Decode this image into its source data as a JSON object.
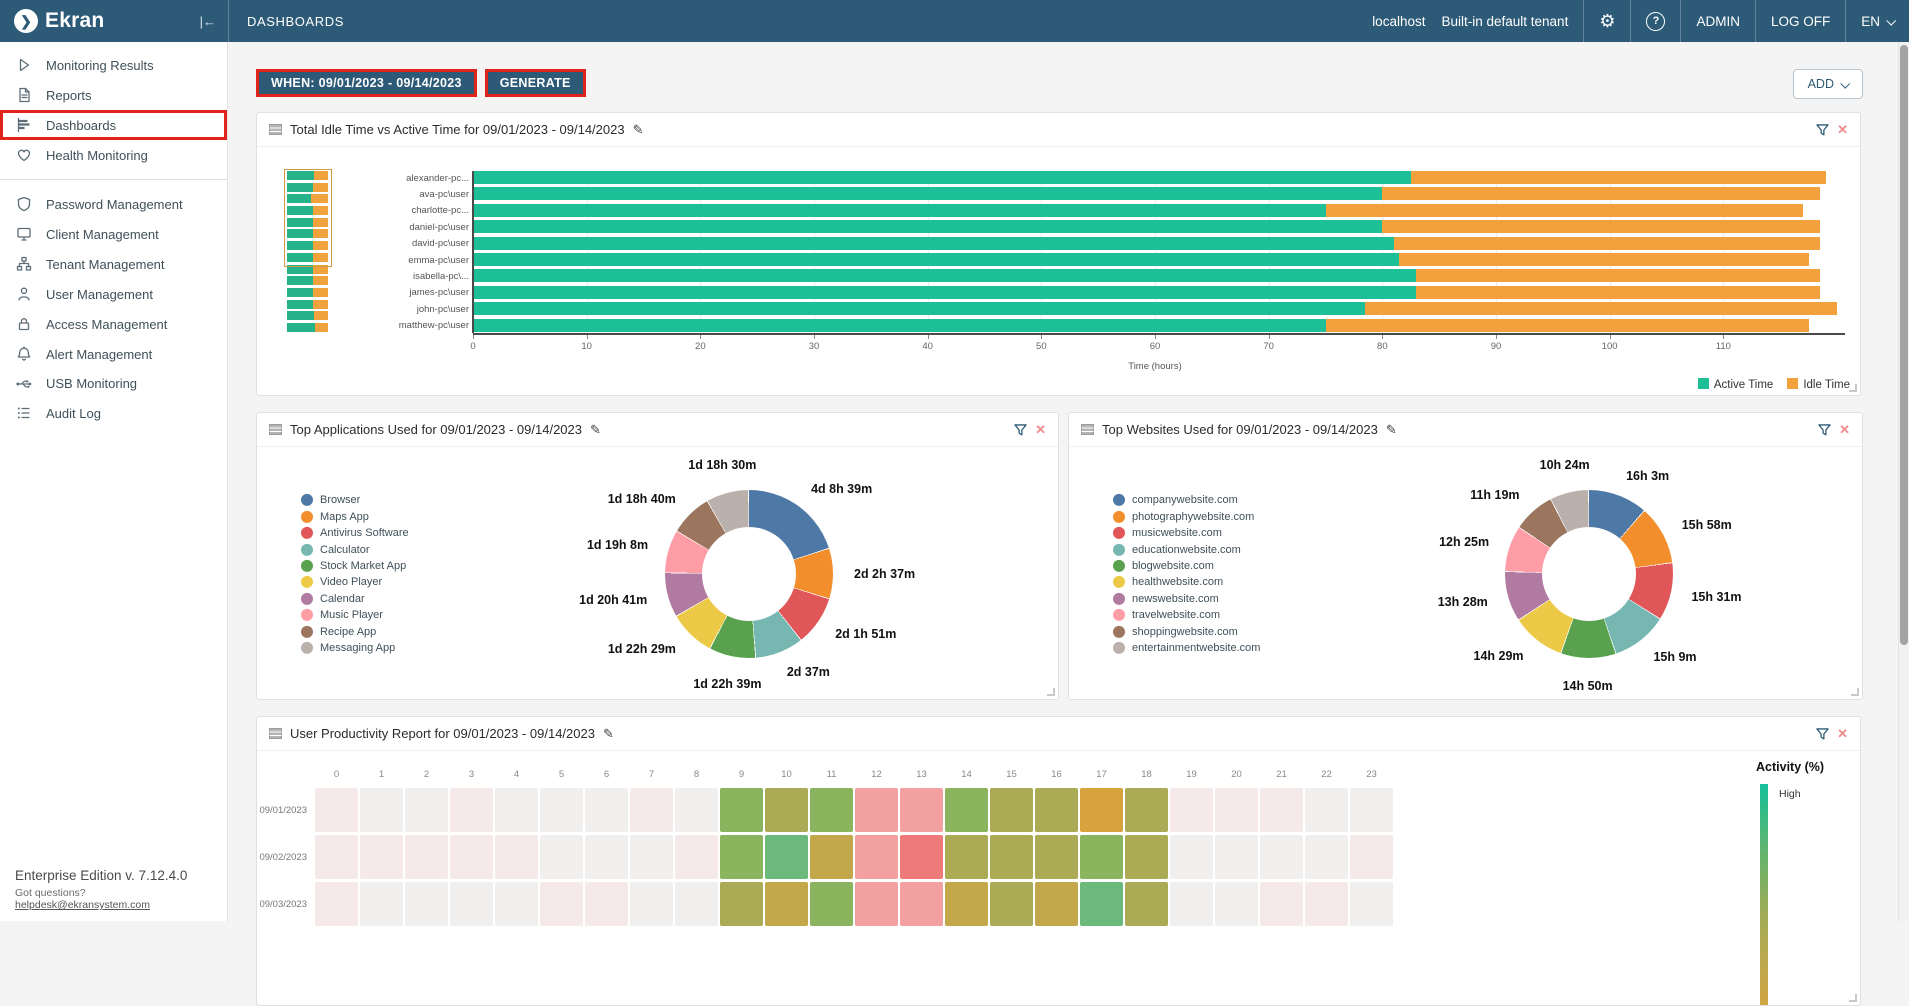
{
  "topbar": {
    "brand": "Ekran",
    "collapse_icon": "|←",
    "page_title": "DASHBOARDS",
    "host": "localhost",
    "tenant": "Built-in default tenant",
    "user": "ADMIN",
    "logoff": "LOG OFF",
    "lang": "EN",
    "help_glyph": "?",
    "gear_glyph": "⚙",
    "brand_glyph": "❯"
  },
  "sidebar": {
    "items": [
      {
        "label": "Monitoring Results",
        "icon": "play-icon"
      },
      {
        "label": "Reports",
        "icon": "report-icon"
      },
      {
        "label": "Dashboards",
        "icon": "dashboard-icon",
        "active": true
      },
      {
        "label": "Health Monitoring",
        "icon": "heart-icon"
      },
      {
        "label": "Password Management",
        "icon": "shield-icon"
      },
      {
        "label": "Client Management",
        "icon": "monitor-icon"
      },
      {
        "label": "Tenant Management",
        "icon": "sitemap-icon"
      },
      {
        "label": "User Management",
        "icon": "user-icon"
      },
      {
        "label": "Access Management",
        "icon": "lock-icon"
      },
      {
        "label": "Alert Management",
        "icon": "bell-icon"
      },
      {
        "label": "USB Monitoring",
        "icon": "usb-icon"
      },
      {
        "label": "Audit Log",
        "icon": "list-icon"
      }
    ],
    "footer": {
      "edition": "Enterprise Edition v. 7.12.4.0",
      "questions_prefix": "Got questions? ",
      "helpdesk": "helpdesk@ekransystem.com"
    }
  },
  "toolbar": {
    "when_label": "WHEN: 09/01/2023 - 09/14/2023",
    "generate_label": "GENERATE",
    "add_label": "ADD"
  },
  "chart_data": [
    {
      "type": "bar",
      "stacked": true,
      "title": "Total Idle Time vs Active Time for 09/01/2023 - 09/14/2023",
      "categories": [
        "alexander-pc...",
        "ava-pc\\user",
        "charlotte-pc...",
        "daniel-pc\\user",
        "david-pc\\user",
        "emma-pc\\user",
        "isabella-pc\\...",
        "james-pc\\user",
        "john-pc\\user",
        "matthew-pc\\user"
      ],
      "series": [
        {
          "name": "Active Time",
          "color": "#1dbf96",
          "values": [
            82.5,
            80,
            75,
            80,
            81,
            81.5,
            83,
            83,
            78.5,
            75
          ]
        },
        {
          "name": "Idle Time",
          "color": "#f2a13c",
          "values": [
            36.5,
            38.5,
            42,
            38.5,
            37.5,
            36,
            35.5,
            35.5,
            41.5,
            42.5
          ]
        }
      ],
      "xlabel": "Time (hours)",
      "xticks": [
        0,
        10,
        20,
        30,
        40,
        50,
        60,
        70,
        80,
        90,
        100,
        110
      ],
      "xmax": 120,
      "navigator": {
        "green_fractions": [
          0.64,
          0.61,
          0.58,
          0.61,
          0.62,
          0.63,
          0.62,
          0.63,
          0.63,
          0.63,
          0.63,
          0.63,
          0.65,
          0.67
        ],
        "selected_rows": 8
      }
    },
    {
      "type": "donut",
      "title": "Top Applications Used for 09/01/2023 - 09/14/2023",
      "items": [
        {
          "label": "Browser",
          "value_label": "4d 8h 39m",
          "hours": 104.65,
          "color": "#4e79a7"
        },
        {
          "label": "Maps App",
          "value_label": "2d 2h 37m",
          "hours": 50.62,
          "color": "#f28e2b"
        },
        {
          "label": "Antivirus Software",
          "value_label": "2d 1h 51m",
          "hours": 49.85,
          "color": "#e15759"
        },
        {
          "label": "Calculator",
          "value_label": "2d 37m",
          "hours": 48.62,
          "color": "#76b7b2"
        },
        {
          "label": "Stock Market App",
          "value_label": "1d 22h 39m",
          "hours": 46.65,
          "color": "#59a14f"
        },
        {
          "label": "Video Player",
          "value_label": "1d 22h 29m",
          "hours": 46.48,
          "color": "#edc948"
        },
        {
          "label": "Calendar",
          "value_label": "1d 20h 41m",
          "hours": 44.68,
          "color": "#b07aa1"
        },
        {
          "label": "Music Player",
          "value_label": "1d 19h 8m",
          "hours": 43.13,
          "color": "#ff9da7"
        },
        {
          "label": "Recipe App",
          "value_label": "1d 18h 40m",
          "hours": 42.67,
          "color": "#9c755f"
        },
        {
          "label": "Messaging App",
          "value_label": "1d 18h 30m",
          "hours": 42.5,
          "color": "#bab0ac"
        }
      ]
    },
    {
      "type": "donut",
      "title": "Top Websites Used for 09/01/2023 - 09/14/2023",
      "items": [
        {
          "label": "companywebsite.com",
          "value_label": "16h 3m",
          "hours": 16.05,
          "color": "#4e79a7"
        },
        {
          "label": "photographywebsite.com",
          "value_label": "15h 58m",
          "hours": 15.97,
          "color": "#f28e2b"
        },
        {
          "label": "musicwebsite.com",
          "value_label": "15h 31m",
          "hours": 15.52,
          "color": "#e15759"
        },
        {
          "label": "educationwebsite.com",
          "value_label": "15h 9m",
          "hours": 15.15,
          "color": "#76b7b2"
        },
        {
          "label": "blogwebsite.com",
          "value_label": "14h 50m",
          "hours": 14.83,
          "color": "#59a14f"
        },
        {
          "label": "healthwebsite.com",
          "value_label": "14h 29m",
          "hours": 14.48,
          "color": "#edc948"
        },
        {
          "label": "newswebsite.com",
          "value_label": "13h 28m",
          "hours": 13.47,
          "color": "#b07aa1"
        },
        {
          "label": "travelwebsite.com",
          "value_label": "12h 25m",
          "hours": 12.42,
          "color": "#ff9da7"
        },
        {
          "label": "shoppingwebsite.com",
          "value_label": "11h 19m",
          "hours": 11.32,
          "color": "#9c755f"
        },
        {
          "label": "entertainmentwebsite.com",
          "value_label": "10h 24m",
          "hours": 10.4,
          "color": "#bab0ac"
        }
      ]
    },
    {
      "type": "heatmap",
      "title": "User Productivity Report for 09/01/2023 - 09/14/2023",
      "hours": [
        0,
        1,
        2,
        3,
        4,
        5,
        6,
        7,
        8,
        9,
        10,
        11,
        12,
        13,
        14,
        15,
        16,
        17,
        18,
        19,
        20,
        21,
        22,
        23
      ],
      "rows": [
        {
          "date": "09/01/2023",
          "cells": "PLLPLLLPLgogppgooOoPPPLL"
        },
        {
          "date": "09/02/2023",
          "cells": "PPPPPLLLPgtmprooogoLLLLP"
        },
        {
          "date": "09/03/2023",
          "cells": "PLLLLPPLLomgppmomtoLLPPL"
        }
      ],
      "palette": {
        "g": "#8ab55e",
        "t": "#6cba7b",
        "o": "#abaa55",
        "m": "#c2a84b",
        "O": "#d8a33c",
        "p": "#f2a0a0",
        "r": "#ee7a7a",
        "L": "#f0efee",
        "P": "#f6e9e9"
      },
      "legend": {
        "title": "Activity (%)",
        "high": "High"
      }
    }
  ]
}
